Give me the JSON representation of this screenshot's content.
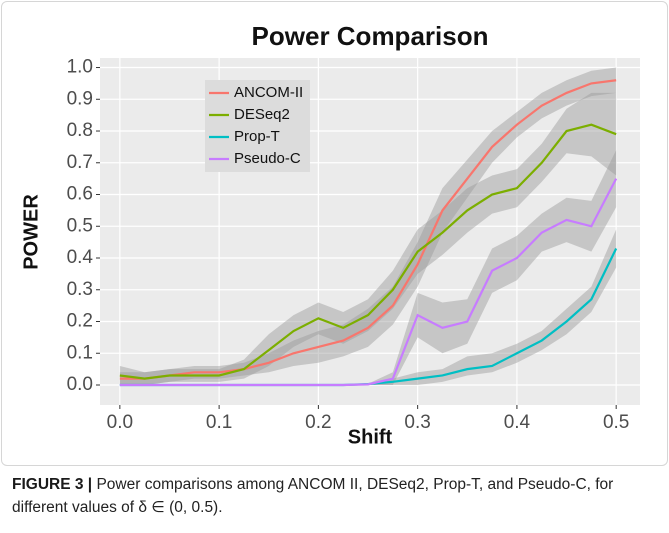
{
  "chart_data": {
    "type": "line",
    "title": "Power Comparison",
    "x_label": "Shift",
    "y_label": "POWER",
    "x": [
      0,
      0.025,
      0.05,
      0.075,
      0.1,
      0.125,
      0.15,
      0.175,
      0.2,
      0.225,
      0.25,
      0.275,
      0.3,
      0.325,
      0.35,
      0.375,
      0.4,
      0.425,
      0.45,
      0.475,
      0.5
    ],
    "series": [
      {
        "name": "ANCOM-II",
        "color": "#F8766D",
        "values": [
          0.02,
          0.02,
          0.03,
          0.04,
          0.04,
          0.05,
          0.07,
          0.1,
          0.12,
          0.14,
          0.18,
          0.25,
          0.38,
          0.55,
          0.65,
          0.75,
          0.82,
          0.88,
          0.92,
          0.95,
          0.96
        ],
        "lower": [
          0.0,
          0.0,
          0.01,
          0.02,
          0.02,
          0.03,
          0.04,
          0.06,
          0.07,
          0.09,
          0.12,
          0.19,
          0.31,
          0.48,
          0.59,
          0.7,
          0.78,
          0.84,
          0.88,
          0.91,
          0.92
        ],
        "upper": [
          0.04,
          0.04,
          0.05,
          0.06,
          0.06,
          0.07,
          0.1,
          0.14,
          0.17,
          0.19,
          0.24,
          0.31,
          0.45,
          0.62,
          0.71,
          0.8,
          0.86,
          0.92,
          0.96,
          0.99,
          1.0
        ]
      },
      {
        "name": "DESeq2",
        "color": "#7CAE00",
        "values": [
          0.03,
          0.02,
          0.03,
          0.03,
          0.03,
          0.05,
          0.11,
          0.17,
          0.21,
          0.18,
          0.22,
          0.3,
          0.42,
          0.48,
          0.55,
          0.6,
          0.62,
          0.7,
          0.8,
          0.82,
          0.79
        ],
        "lower": [
          0.0,
          0.0,
          0.01,
          0.01,
          0.01,
          0.02,
          0.06,
          0.12,
          0.16,
          0.13,
          0.17,
          0.24,
          0.35,
          0.41,
          0.48,
          0.54,
          0.56,
          0.64,
          0.73,
          0.72,
          0.66
        ],
        "upper": [
          0.06,
          0.04,
          0.05,
          0.05,
          0.05,
          0.08,
          0.16,
          0.22,
          0.26,
          0.23,
          0.27,
          0.36,
          0.49,
          0.55,
          0.62,
          0.66,
          0.68,
          0.76,
          0.87,
          0.92,
          0.92
        ]
      },
      {
        "name": "Prop-T",
        "color": "#00BFC4",
        "values": [
          0,
          0,
          0,
          0,
          0,
          0,
          0,
          0,
          0,
          0,
          0.003,
          0.01,
          0.02,
          0.03,
          0.05,
          0.06,
          0.1,
          0.14,
          0.2,
          0.27,
          0.43
        ],
        "lower": [
          0,
          0,
          0,
          0,
          0,
          0,
          0,
          0,
          0,
          0,
          0,
          0,
          0,
          0.01,
          0.03,
          0.04,
          0.07,
          0.11,
          0.16,
          0.23,
          0.37
        ],
        "upper": [
          0,
          0,
          0,
          0,
          0,
          0,
          0,
          0,
          0,
          0,
          0.006,
          0.02,
          0.04,
          0.05,
          0.09,
          0.1,
          0.13,
          0.17,
          0.24,
          0.31,
          0.49
        ]
      },
      {
        "name": "Pseudo-C",
        "color": "#C77CFF",
        "values": [
          0,
          0,
          0,
          0,
          0,
          0,
          0,
          0,
          0,
          0,
          0.002,
          0.02,
          0.22,
          0.18,
          0.2,
          0.36,
          0.4,
          0.48,
          0.52,
          0.5,
          0.65
        ],
        "lower": [
          0,
          0,
          0,
          0,
          0,
          0,
          0,
          0,
          0,
          0,
          0,
          0.0,
          0.15,
          0.1,
          0.13,
          0.29,
          0.33,
          0.42,
          0.45,
          0.42,
          0.56
        ],
        "upper": [
          0,
          0,
          0,
          0,
          0,
          0,
          0,
          0,
          0,
          0,
          0.004,
          0.04,
          0.29,
          0.26,
          0.27,
          0.43,
          0.47,
          0.54,
          0.59,
          0.58,
          0.74
        ]
      }
    ],
    "xlim": [
      -0.02,
      0.524
    ],
    "ylim": [
      -0.063,
      1.03
    ],
    "xticks": [
      {
        "value": 0,
        "label": "0.0"
      },
      {
        "value": 0.1,
        "label": "0.1"
      },
      {
        "value": 0.2,
        "label": "0.2"
      },
      {
        "value": 0.3,
        "label": "0.3"
      },
      {
        "value": 0.4,
        "label": "0.4"
      },
      {
        "value": 0.5,
        "label": "0.5"
      }
    ],
    "yticks": [
      {
        "value": 0,
        "label": "0.0"
      },
      {
        "value": 0.1,
        "label": "0.1"
      },
      {
        "value": 0.2,
        "label": "0.2"
      },
      {
        "value": 0.3,
        "label": "0.3"
      },
      {
        "value": 0.4,
        "label": "0.4"
      },
      {
        "value": 0.5,
        "label": "0.5"
      },
      {
        "value": 0.6,
        "label": "0.6"
      },
      {
        "value": 0.7,
        "label": "0.7"
      },
      {
        "value": 0.8,
        "label": "0.8"
      },
      {
        "value": 0.9,
        "label": "0.9"
      },
      {
        "value": 1.0,
        "label": "1.0"
      }
    ],
    "grid": true,
    "legend": "top-left",
    "caption_label": "FIGURE 3 |",
    "caption_text": "Power comparisons among ANCOM II, DESeq2, Prop-T, and Pseudo-C, for different values of δ ∈ (0, 0.5)."
  }
}
